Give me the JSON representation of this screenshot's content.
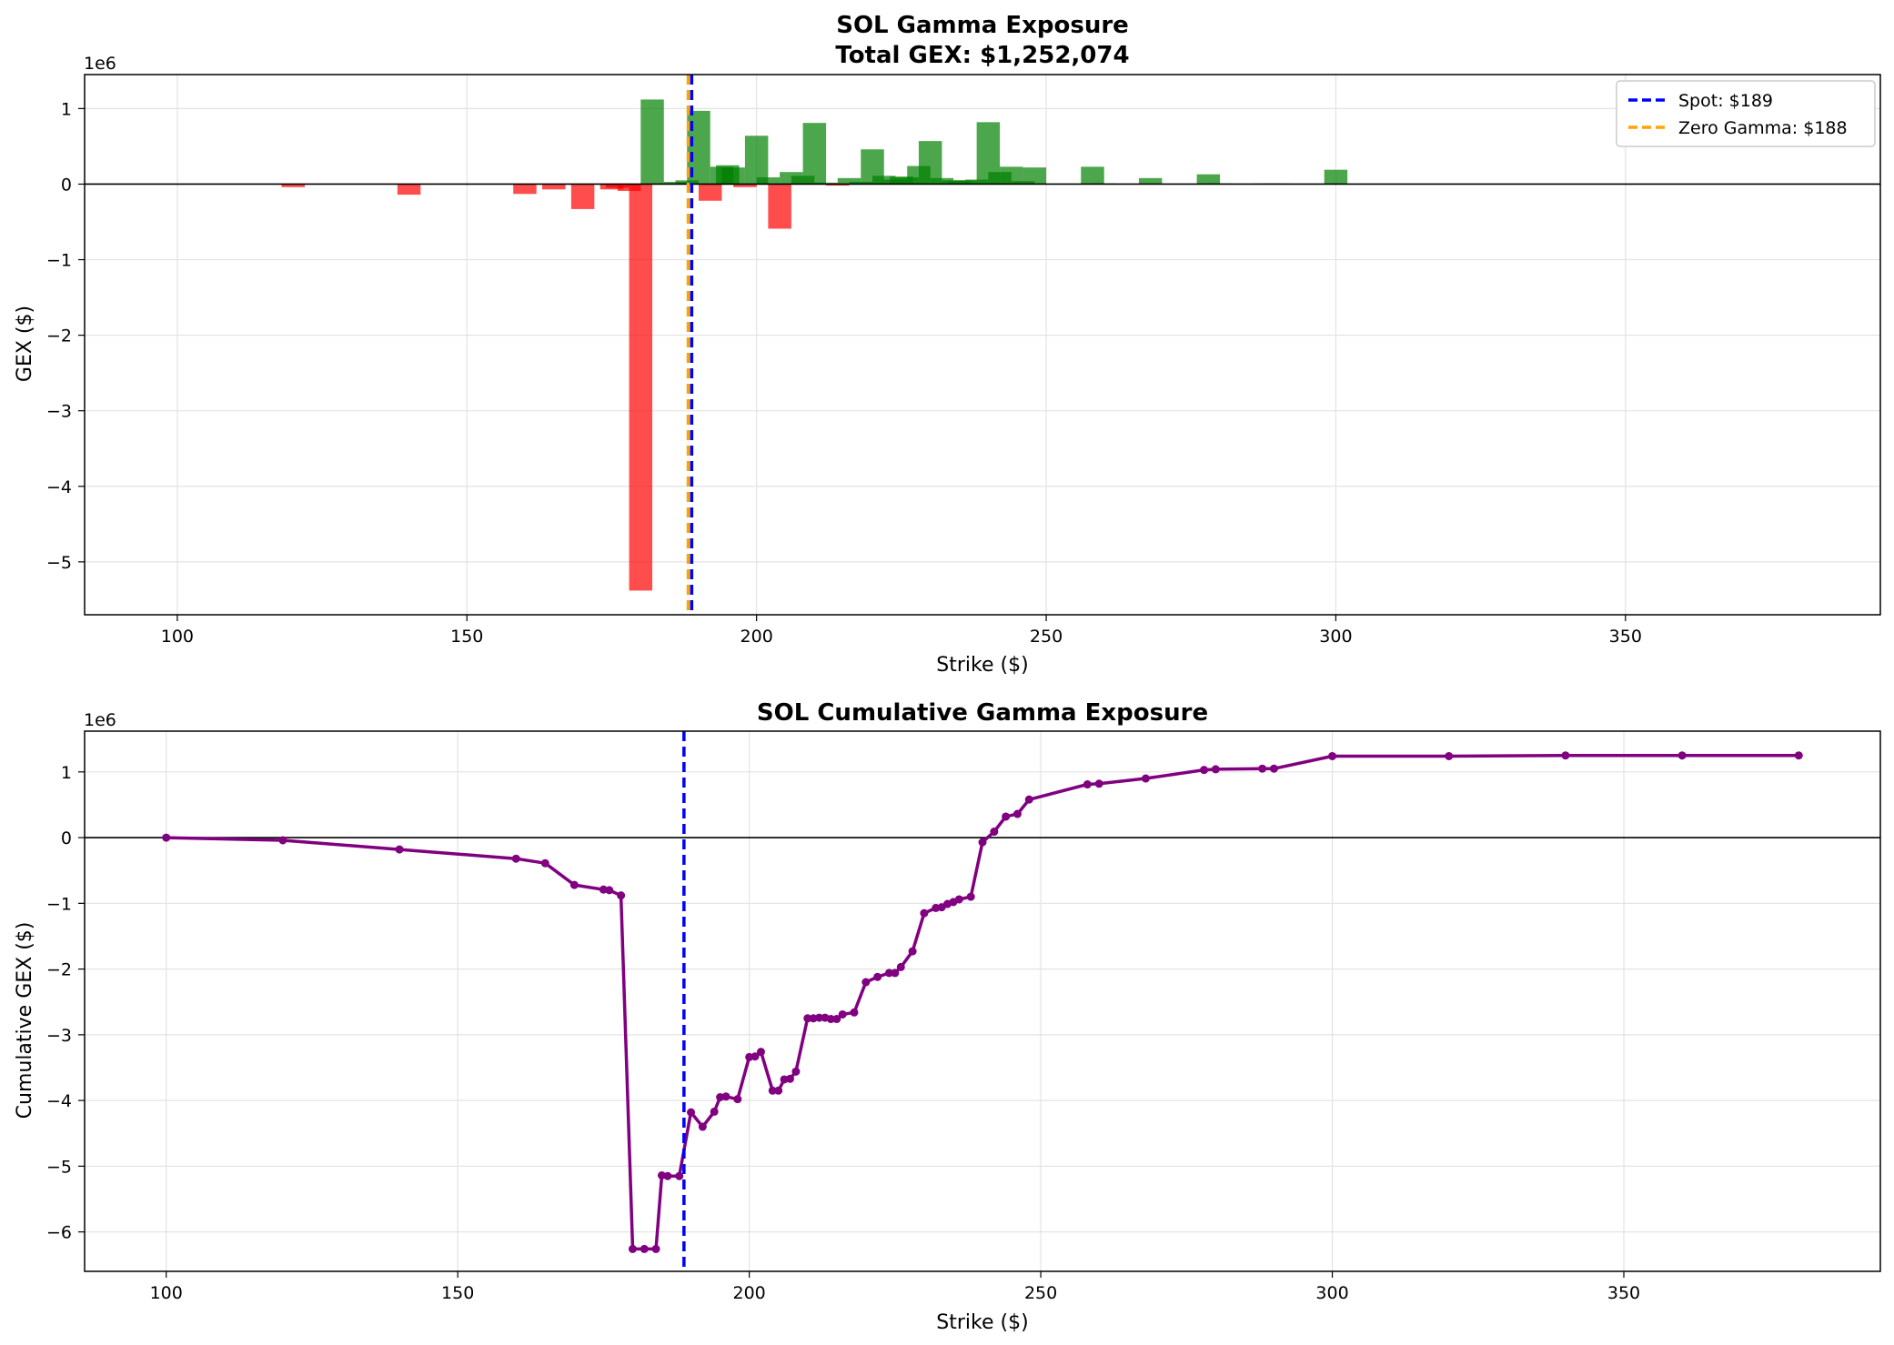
{
  "chart_data": [
    {
      "type": "bar",
      "title": "SOL Gamma Exposure",
      "subtitle": "Total GEX: $1,252,074",
      "xlabel": "Strike ($)",
      "ylabel": "GEX ($)",
      "y_offset_label": "1e6",
      "xlim": [
        84,
        394
      ],
      "ylim": [
        -5.7,
        1.45
      ],
      "xticks": [
        100,
        150,
        200,
        250,
        300,
        350
      ],
      "yticks": [
        1,
        0,
        -1,
        -2,
        -3,
        -4,
        -5
      ],
      "grid": true,
      "legend_position": "top-right",
      "positive_color": "#008000",
      "negative_color": "#ff0000",
      "bars": [
        {
          "strike": 120,
          "value": -0.04
        },
        {
          "strike": 140,
          "value": -0.14
        },
        {
          "strike": 160,
          "value": -0.13
        },
        {
          "strike": 165,
          "value": -0.07
        },
        {
          "strike": 170,
          "value": -0.33
        },
        {
          "strike": 175,
          "value": -0.07
        },
        {
          "strike": 176,
          "value": -0.05
        },
        {
          "strike": 178,
          "value": -0.09
        },
        {
          "strike": 180,
          "value": -5.38
        },
        {
          "strike": 182,
          "value": 1.12
        },
        {
          "strike": 184,
          "value": 0.01
        },
        {
          "strike": 186,
          "value": 0.03
        },
        {
          "strike": 188,
          "value": 0.05
        },
        {
          "strike": 190,
          "value": 0.97
        },
        {
          "strike": 192,
          "value": -0.22
        },
        {
          "strike": 194,
          "value": 0.23
        },
        {
          "strike": 195,
          "value": 0.25
        },
        {
          "strike": 196,
          "value": 0.22
        },
        {
          "strike": 198,
          "value": -0.04
        },
        {
          "strike": 200,
          "value": 0.64
        },
        {
          "strike": 202,
          "value": 0.09
        },
        {
          "strike": 204,
          "value": -0.59
        },
        {
          "strike": 206,
          "value": 0.16
        },
        {
          "strike": 208,
          "value": 0.11
        },
        {
          "strike": 210,
          "value": 0.81
        },
        {
          "strike": 212,
          "value": 0.02
        },
        {
          "strike": 214,
          "value": -0.02
        },
        {
          "strike": 216,
          "value": 0.08
        },
        {
          "strike": 218,
          "value": 0.03
        },
        {
          "strike": 220,
          "value": 0.46
        },
        {
          "strike": 222,
          "value": 0.11
        },
        {
          "strike": 224,
          "value": 0.06
        },
        {
          "strike": 225,
          "value": 0.1
        },
        {
          "strike": 226,
          "value": 0.09
        },
        {
          "strike": 228,
          "value": 0.24
        },
        {
          "strike": 230,
          "value": 0.57
        },
        {
          "strike": 232,
          "value": 0.08
        },
        {
          "strike": 234,
          "value": 0.05
        },
        {
          "strike": 235,
          "value": 0.04
        },
        {
          "strike": 236,
          "value": 0.05
        },
        {
          "strike": 238,
          "value": 0.06
        },
        {
          "strike": 240,
          "value": 0.82
        },
        {
          "strike": 242,
          "value": 0.16
        },
        {
          "strike": 244,
          "value": 0.23
        },
        {
          "strike": 246,
          "value": 0.04
        },
        {
          "strike": 248,
          "value": 0.22
        },
        {
          "strike": 258,
          "value": 0.23
        },
        {
          "strike": 260,
          "value": 0.01
        },
        {
          "strike": 268,
          "value": 0.08
        },
        {
          "strike": 278,
          "value": 0.13
        },
        {
          "strike": 280,
          "value": 0.01
        },
        {
          "strike": 288,
          "value": 0.01
        },
        {
          "strike": 290,
          "value": 0.01
        },
        {
          "strike": 300,
          "value": 0.19
        }
      ],
      "reference_lines": [
        {
          "label": "Spot: $189",
          "x": 188.8,
          "color": "#0000ff"
        },
        {
          "label": "Zero Gamma: $188",
          "x": 188.2,
          "color": "#ffa500"
        }
      ]
    },
    {
      "type": "line",
      "title": "SOL Cumulative Gamma Exposure",
      "xlabel": "Strike ($)",
      "ylabel": "Cumulative GEX ($)",
      "y_offset_label": "1e6",
      "xlim": [
        86,
        394
      ],
      "ylim": [
        -6.6,
        1.62
      ],
      "xticks": [
        100,
        150,
        200,
        250,
        300,
        350
      ],
      "yticks": [
        1,
        0,
        -1,
        -2,
        -3,
        -4,
        -5,
        -6
      ],
      "grid": true,
      "line_color": "#800080",
      "spot_line": {
        "x": 188.8,
        "color": "#0000ff"
      },
      "points": [
        [
          100,
          0.0
        ],
        [
          120,
          -0.04
        ],
        [
          140,
          -0.18
        ],
        [
          160,
          -0.32
        ],
        [
          165,
          -0.39
        ],
        [
          170,
          -0.72
        ],
        [
          175,
          -0.79
        ],
        [
          176,
          -0.8
        ],
        [
          178,
          -0.88
        ],
        [
          180,
          -6.26
        ],
        [
          182,
          -6.26
        ],
        [
          184,
          -6.26
        ],
        [
          185,
          -5.14
        ],
        [
          186,
          -5.15
        ],
        [
          188,
          -5.15
        ],
        [
          190,
          -4.18
        ],
        [
          192,
          -4.4
        ],
        [
          194,
          -4.17
        ],
        [
          195,
          -3.95
        ],
        [
          196,
          -3.94
        ],
        [
          198,
          -3.98
        ],
        [
          200,
          -3.34
        ],
        [
          201,
          -3.33
        ],
        [
          202,
          -3.26
        ],
        [
          204,
          -3.85
        ],
        [
          205,
          -3.85
        ],
        [
          206,
          -3.68
        ],
        [
          207,
          -3.67
        ],
        [
          208,
          -3.56
        ],
        [
          210,
          -2.75
        ],
        [
          211,
          -2.75
        ],
        [
          212,
          -2.74
        ],
        [
          213,
          -2.74
        ],
        [
          214,
          -2.76
        ],
        [
          215,
          -2.76
        ],
        [
          216,
          -2.69
        ],
        [
          218,
          -2.66
        ],
        [
          220,
          -2.2
        ],
        [
          222,
          -2.12
        ],
        [
          224,
          -2.06
        ],
        [
          225,
          -2.06
        ],
        [
          226,
          -1.97
        ],
        [
          228,
          -1.73
        ],
        [
          230,
          -1.15
        ],
        [
          232,
          -1.07
        ],
        [
          233,
          -1.06
        ],
        [
          234,
          -1.01
        ],
        [
          235,
          -0.98
        ],
        [
          236,
          -0.94
        ],
        [
          238,
          -0.9
        ],
        [
          240,
          -0.07
        ],
        [
          242,
          0.09
        ],
        [
          244,
          0.32
        ],
        [
          246,
          0.36
        ],
        [
          248,
          0.58
        ],
        [
          258,
          0.81
        ],
        [
          260,
          0.82
        ],
        [
          268,
          0.9
        ],
        [
          278,
          1.03
        ],
        [
          280,
          1.04
        ],
        [
          288,
          1.05
        ],
        [
          290,
          1.05
        ],
        [
          300,
          1.24
        ],
        [
          320,
          1.24
        ],
        [
          340,
          1.25
        ],
        [
          360,
          1.25
        ],
        [
          380,
          1.25
        ]
      ]
    }
  ]
}
